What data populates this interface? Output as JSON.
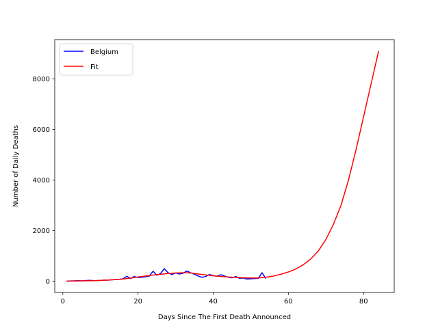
{
  "chart_data": {
    "type": "line",
    "title": "",
    "xlabel": "Days Since The First Death Announced",
    "ylabel": "Number of Daily Deaths",
    "xlim": [
      -2.15,
      88.15
    ],
    "ylim": [
      -450,
      9550
    ],
    "xticks": [
      0,
      20,
      40,
      60,
      80
    ],
    "yticks": [
      0,
      2000,
      4000,
      6000,
      8000
    ],
    "grid": false,
    "legend_position": "upper-left",
    "series": [
      {
        "name": "Belgium",
        "color": "#0000ff",
        "x": [
          1,
          2,
          3,
          4,
          5,
          6,
          7,
          8,
          9,
          10,
          11,
          12,
          13,
          14,
          15,
          16,
          17,
          18,
          19,
          20,
          21,
          22,
          23,
          24,
          25,
          26,
          27,
          28,
          29,
          30,
          31,
          32,
          33,
          34,
          35,
          36,
          37,
          38,
          39,
          40,
          41,
          42,
          43,
          44,
          45,
          46,
          47,
          48,
          49,
          50,
          51,
          52,
          53,
          54
        ],
        "y": [
          0,
          5,
          10,
          15,
          10,
          20,
          30,
          20,
          15,
          25,
          40,
          35,
          50,
          60,
          70,
          90,
          190,
          100,
          180,
          140,
          150,
          170,
          200,
          390,
          230,
          300,
          490,
          330,
          260,
          320,
          280,
          310,
          400,
          330,
          270,
          200,
          150,
          180,
          260,
          220,
          190,
          250,
          200,
          150,
          130,
          180,
          110,
          120,
          80,
          90,
          100,
          110,
          330,
          100
        ]
      },
      {
        "name": "Fit",
        "color": "#ff0000",
        "x": [
          1,
          4,
          8,
          12,
          16,
          20,
          24,
          28,
          30,
          32,
          34,
          36,
          40,
          44,
          48,
          50,
          52,
          54,
          56,
          58,
          60,
          62,
          64,
          66,
          68,
          70,
          72,
          74,
          76,
          78,
          80,
          82,
          84
        ],
        "y": [
          0,
          5,
          15,
          40,
          80,
          160,
          240,
          300,
          320,
          330,
          320,
          280,
          210,
          160,
          130,
          120,
          125,
          150,
          200,
          270,
          360,
          480,
          650,
          880,
          1200,
          1650,
          2250,
          3000,
          4000,
          5200,
          6500,
          7800,
          9100
        ]
      }
    ]
  }
}
